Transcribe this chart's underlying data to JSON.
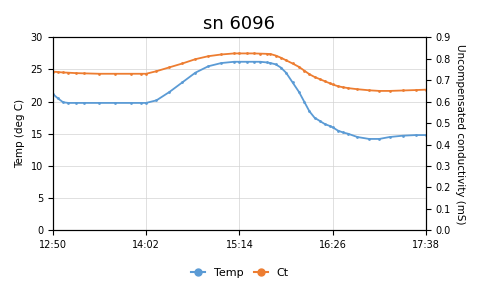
{
  "title": "sn 6096",
  "ylabel_left": "Temp (deg C)",
  "ylabel_right": "Uncompensated conductivity (mS)",
  "ylim_left": [
    0,
    30
  ],
  "ylim_right": [
    0,
    0.9
  ],
  "yticks_left": [
    0,
    5,
    10,
    15,
    20,
    25,
    30
  ],
  "yticks_right": [
    0.0,
    0.1,
    0.2,
    0.3,
    0.4,
    0.5,
    0.6,
    0.7,
    0.8,
    0.9
  ],
  "xtick_labels": [
    "12:50",
    "14:02",
    "15:14",
    "16:26",
    "17:38"
  ],
  "xtick_positions": [
    0,
    72,
    144,
    216,
    288
  ],
  "temp_color": "#5B9BD5",
  "ct_color": "#ED7D31",
  "legend_labels": [
    "Temp",
    "Ct"
  ],
  "temp_data": [
    [
      0,
      21.2
    ],
    [
      4,
      20.5
    ],
    [
      8,
      19.9
    ],
    [
      12,
      19.8
    ],
    [
      18,
      19.8
    ],
    [
      24,
      19.8
    ],
    [
      36,
      19.8
    ],
    [
      48,
      19.8
    ],
    [
      60,
      19.8
    ],
    [
      68,
      19.8
    ],
    [
      72,
      19.8
    ],
    [
      80,
      20.2
    ],
    [
      90,
      21.5
    ],
    [
      100,
      23.0
    ],
    [
      110,
      24.5
    ],
    [
      120,
      25.5
    ],
    [
      130,
      26.0
    ],
    [
      140,
      26.2
    ],
    [
      144,
      26.2
    ],
    [
      150,
      26.2
    ],
    [
      155,
      26.2
    ],
    [
      160,
      26.2
    ],
    [
      165,
      26.1
    ],
    [
      168,
      26.0
    ],
    [
      172,
      25.8
    ],
    [
      176,
      25.3
    ],
    [
      180,
      24.5
    ],
    [
      185,
      23.0
    ],
    [
      190,
      21.5
    ],
    [
      194,
      20.0
    ],
    [
      198,
      18.5
    ],
    [
      202,
      17.5
    ],
    [
      206,
      17.0
    ],
    [
      210,
      16.5
    ],
    [
      214,
      16.2
    ],
    [
      216,
      16.0
    ],
    [
      220,
      15.5
    ],
    [
      224,
      15.2
    ],
    [
      228,
      15.0
    ],
    [
      235,
      14.5
    ],
    [
      244,
      14.2
    ],
    [
      252,
      14.2
    ],
    [
      260,
      14.5
    ],
    [
      270,
      14.7
    ],
    [
      280,
      14.8
    ],
    [
      288,
      14.8
    ]
  ],
  "ct_data": [
    [
      0,
      0.74
    ],
    [
      4,
      0.738
    ],
    [
      8,
      0.736
    ],
    [
      12,
      0.735
    ],
    [
      18,
      0.733
    ],
    [
      24,
      0.732
    ],
    [
      36,
      0.73
    ],
    [
      48,
      0.73
    ],
    [
      60,
      0.73
    ],
    [
      68,
      0.73
    ],
    [
      72,
      0.73
    ],
    [
      80,
      0.742
    ],
    [
      90,
      0.76
    ],
    [
      100,
      0.778
    ],
    [
      110,
      0.798
    ],
    [
      120,
      0.812
    ],
    [
      130,
      0.82
    ],
    [
      140,
      0.825
    ],
    [
      144,
      0.825
    ],
    [
      150,
      0.825
    ],
    [
      155,
      0.825
    ],
    [
      160,
      0.824
    ],
    [
      165,
      0.823
    ],
    [
      168,
      0.822
    ],
    [
      172,
      0.815
    ],
    [
      176,
      0.805
    ],
    [
      180,
      0.793
    ],
    [
      185,
      0.778
    ],
    [
      190,
      0.762
    ],
    [
      194,
      0.745
    ],
    [
      198,
      0.728
    ],
    [
      202,
      0.715
    ],
    [
      206,
      0.705
    ],
    [
      210,
      0.695
    ],
    [
      214,
      0.685
    ],
    [
      216,
      0.68
    ],
    [
      220,
      0.672
    ],
    [
      224,
      0.667
    ],
    [
      228,
      0.663
    ],
    [
      235,
      0.658
    ],
    [
      244,
      0.653
    ],
    [
      252,
      0.65
    ],
    [
      260,
      0.65
    ],
    [
      270,
      0.652
    ],
    [
      280,
      0.654
    ],
    [
      288,
      0.656
    ]
  ],
  "xlim": [
    0,
    288
  ],
  "background_color": "#ffffff",
  "grid_color": "#d3d3d3",
  "title_fontsize": 13
}
